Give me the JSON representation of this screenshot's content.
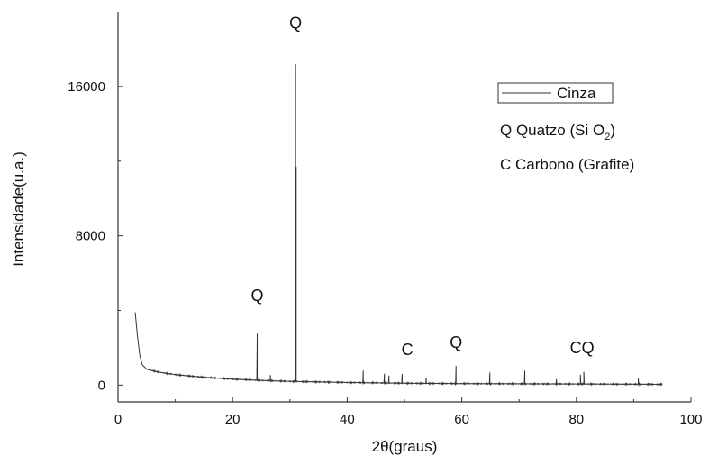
{
  "chart_data": {
    "type": "line",
    "xlabel_prefix": "2",
    "xlabel_theta": "θ",
    "xlabel_suffix": "(graus)",
    "ylabel": "Intensidade(u.a.)",
    "xlim": [
      0,
      100
    ],
    "ylim": [
      -900,
      20000
    ],
    "xticks": [
      0,
      20,
      40,
      60,
      80,
      100
    ],
    "yticks": [
      0,
      8000,
      16000
    ],
    "xtick_labels": [
      "0",
      "20",
      "40",
      "60",
      "80",
      "100"
    ],
    "ytick_labels": [
      "0",
      "8000",
      "16000"
    ],
    "line_color": "#333333",
    "series": [
      {
        "name": "Cinza",
        "baseline": [
          [
            3.0,
            3900
          ],
          [
            3.4,
            2600
          ],
          [
            3.8,
            1600
          ],
          [
            4.2,
            1100
          ],
          [
            5,
            850
          ],
          [
            7,
            700
          ],
          [
            10,
            560
          ],
          [
            15,
            420
          ],
          [
            20,
            320
          ],
          [
            25,
            250
          ],
          [
            30,
            200
          ],
          [
            40,
            140
          ],
          [
            50,
            100
          ],
          [
            60,
            80
          ],
          [
            70,
            70
          ],
          [
            80,
            60
          ],
          [
            90,
            50
          ],
          [
            95,
            40
          ]
        ],
        "peaks": [
          [
            24.3,
            2500
          ],
          [
            26.6,
            300
          ],
          [
            31.0,
            17000
          ],
          [
            31.1,
            11500
          ],
          [
            42.8,
            650
          ],
          [
            46.5,
            500
          ],
          [
            47.3,
            400
          ],
          [
            49.6,
            500
          ],
          [
            53.8,
            300
          ],
          [
            59.0,
            950
          ],
          [
            64.9,
            600
          ],
          [
            71.0,
            700
          ],
          [
            76.5,
            250
          ],
          [
            80.7,
            500
          ],
          [
            81.3,
            650
          ],
          [
            90.8,
            300
          ]
        ]
      }
    ],
    "peak_labels": [
      {
        "text": "Q",
        "x": 24.3,
        "y": 4500
      },
      {
        "text": "Q",
        "x": 31.0,
        "y": 19100
      },
      {
        "text": "C",
        "x": 50.5,
        "y": 1600
      },
      {
        "text": "Q",
        "x": 59.0,
        "y": 2000
      },
      {
        "text": "CQ",
        "x": 81.0,
        "y": 1700
      }
    ],
    "legend": {
      "placement": "top-right",
      "series_entry": "Cinza",
      "notes": [
        {
          "prefix": "Q Quatzo (Si O",
          "sub": "2",
          "suffix": ")"
        },
        {
          "prefix": "C Carbono (Grafite)",
          "sub": "",
          "suffix": ""
        }
      ]
    }
  }
}
